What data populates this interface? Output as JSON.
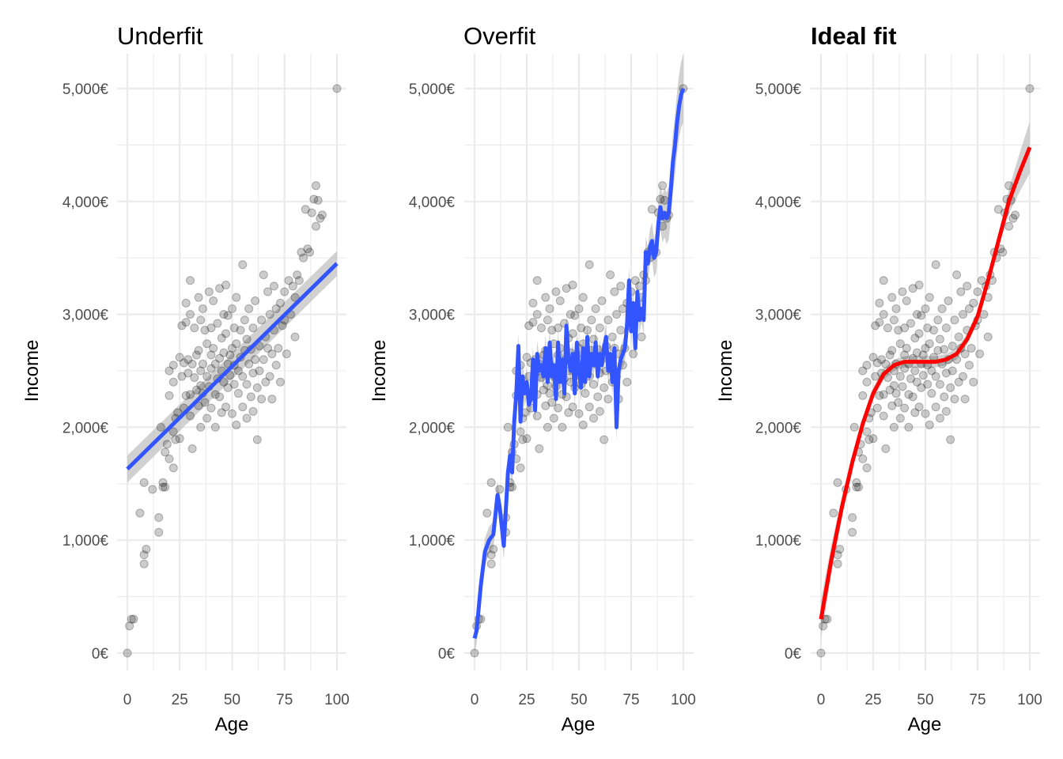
{
  "colors": {
    "grid": "#ebebeb",
    "points": "#000000",
    "confidence_band": "#bdbdbd",
    "fit_blue": "#3355ff",
    "fit_red": "#ff0000",
    "tick_text": "#4d4d4d"
  },
  "chart_data": [
    {
      "type": "scatter",
      "title": "Underfit",
      "title_color": "#000000",
      "title_bold": false,
      "xlabel": "Age",
      "ylabel": "Income",
      "xlim": [
        0,
        100
      ],
      "ylim": [
        0,
        5000
      ],
      "x_ticks": [
        "0",
        "25",
        "50",
        "75",
        "100"
      ],
      "y_ticks": [
        "0€",
        "1,000€",
        "2,000€",
        "3,000€",
        "4,000€",
        "5,000€"
      ],
      "grid": true,
      "fit": {
        "method": "linear",
        "color": "#3355ff",
        "band": true,
        "points": [
          [
            0,
            1630
          ],
          [
            100,
            3450
          ]
        ]
      }
    },
    {
      "type": "scatter",
      "title": "Overfit",
      "title_color": "#000000",
      "title_bold": false,
      "xlabel": "Age",
      "ylabel": "Income",
      "xlim": [
        0,
        100
      ],
      "ylim": [
        0,
        5000
      ],
      "x_ticks": [
        "0",
        "25",
        "50",
        "75",
        "100"
      ],
      "y_ticks": [
        "0€",
        "1,000€",
        "2,000€",
        "3,000€",
        "4,000€",
        "5,000€"
      ],
      "grid": true,
      "fit": {
        "method": "overfit",
        "color": "#3355ff",
        "band": true,
        "points": [
          [
            0,
            130
          ],
          [
            1,
            200
          ],
          [
            3,
            600
          ],
          [
            5,
            900
          ],
          [
            7,
            1000
          ],
          [
            9,
            1050
          ],
          [
            11,
            1400
          ],
          [
            12,
            1300
          ],
          [
            14,
            950
          ],
          [
            16,
            1600
          ],
          [
            17,
            1750
          ],
          [
            18,
            1600
          ],
          [
            19,
            2050
          ],
          [
            20,
            2300
          ],
          [
            21,
            2720
          ],
          [
            22,
            2050
          ],
          [
            23,
            2450
          ],
          [
            24,
            2300
          ],
          [
            25,
            2400
          ],
          [
            26,
            2200
          ],
          [
            27,
            2250
          ],
          [
            28,
            2600
          ],
          [
            29,
            2150
          ],
          [
            30,
            2650
          ],
          [
            31,
            2500
          ],
          [
            32,
            2550
          ],
          [
            33,
            2450
          ],
          [
            34,
            2700
          ],
          [
            35,
            2400
          ],
          [
            36,
            2750
          ],
          [
            37,
            2450
          ],
          [
            38,
            2550
          ],
          [
            39,
            2250
          ],
          [
            40,
            2750
          ],
          [
            41,
            2400
          ],
          [
            42,
            2600
          ],
          [
            43,
            2300
          ],
          [
            44,
            2900
          ],
          [
            45,
            2600
          ],
          [
            46,
            2500
          ],
          [
            47,
            2650
          ],
          [
            48,
            2300
          ],
          [
            49,
            2750
          ],
          [
            50,
            2500
          ],
          [
            51,
            2350
          ],
          [
            52,
            2700
          ],
          [
            53,
            2400
          ],
          [
            54,
            2800
          ],
          [
            55,
            2450
          ],
          [
            56,
            2650
          ],
          [
            57,
            2550
          ],
          [
            58,
            2750
          ],
          [
            59,
            2450
          ],
          [
            60,
            2650
          ],
          [
            61,
            2550
          ],
          [
            62,
            2700
          ],
          [
            63,
            2800
          ],
          [
            64,
            2500
          ],
          [
            65,
            2650
          ],
          [
            66,
            2400
          ],
          [
            67,
            2700
          ],
          [
            68,
            2000
          ],
          [
            69,
            2500
          ],
          [
            70,
            2600
          ],
          [
            71,
            2650
          ],
          [
            72,
            2700
          ],
          [
            73,
            2900
          ],
          [
            74,
            3300
          ],
          [
            75,
            2850
          ],
          [
            76,
            3100
          ],
          [
            77,
            2700
          ],
          [
            78,
            3200
          ],
          [
            79,
            2950
          ],
          [
            80,
            3050
          ],
          [
            81,
            2950
          ],
          [
            82,
            3550
          ],
          [
            83,
            3450
          ],
          [
            84,
            3600
          ],
          [
            85,
            3650
          ],
          [
            86,
            3500
          ],
          [
            87,
            3550
          ],
          [
            88,
            3800
          ],
          [
            89,
            3950
          ],
          [
            90,
            3850
          ],
          [
            91,
            3900
          ],
          [
            92,
            3850
          ],
          [
            93,
            3900
          ],
          [
            94,
            4100
          ],
          [
            95,
            4350
          ],
          [
            96,
            4500
          ],
          [
            97,
            4700
          ],
          [
            98,
            4850
          ],
          [
            99,
            4950
          ],
          [
            100,
            5000
          ]
        ]
      }
    },
    {
      "type": "scatter",
      "title": "Ideal fit",
      "title_color": "#ff0000",
      "title_bold": true,
      "xlabel": "Age",
      "ylabel": "Income",
      "xlim": [
        0,
        100
      ],
      "ylim": [
        0,
        5000
      ],
      "x_ticks": [
        "0",
        "25",
        "50",
        "75",
        "100"
      ],
      "y_ticks": [
        "0€",
        "1,000€",
        "2,000€",
        "3,000€",
        "4,000€",
        "5,000€"
      ],
      "grid": true,
      "fit": {
        "method": "smooth",
        "color": "#ff0000",
        "band": true,
        "points": [
          [
            0,
            300
          ],
          [
            5,
            830
          ],
          [
            10,
            1290
          ],
          [
            15,
            1690
          ],
          [
            20,
            2030
          ],
          [
            25,
            2300
          ],
          [
            30,
            2470
          ],
          [
            35,
            2550
          ],
          [
            40,
            2580
          ],
          [
            45,
            2580
          ],
          [
            50,
            2580
          ],
          [
            55,
            2580
          ],
          [
            60,
            2600
          ],
          [
            65,
            2650
          ],
          [
            70,
            2780
          ],
          [
            75,
            2980
          ],
          [
            80,
            3300
          ],
          [
            85,
            3650
          ],
          [
            90,
            4000
          ],
          [
            95,
            4250
          ],
          [
            100,
            4480
          ]
        ]
      }
    }
  ],
  "scatter_points": [
    [
      0,
      0
    ],
    [
      1,
      240
    ],
    [
      2,
      300
    ],
    [
      3,
      300
    ],
    [
      6,
      1240
    ],
    [
      8,
      1510
    ],
    [
      8,
      870
    ],
    [
      8,
      790
    ],
    [
      9,
      920
    ],
    [
      12,
      1450
    ],
    [
      15,
      1200
    ],
    [
      15,
      1070
    ],
    [
      16,
      2000
    ],
    [
      17,
      1510
    ],
    [
      17,
      1470
    ],
    [
      18,
      1780
    ],
    [
      18,
      1470
    ],
    [
      19,
      1850
    ],
    [
      20,
      2280
    ],
    [
      20,
      2500
    ],
    [
      20,
      1720
    ],
    [
      22,
      1640
    ],
    [
      22,
      1960
    ],
    [
      22,
      2400
    ],
    [
      22,
      2550
    ],
    [
      23,
      1890
    ],
    [
      23,
      2080
    ],
    [
      24,
      2130
    ],
    [
      25,
      2620
    ],
    [
      25,
      1900
    ],
    [
      26,
      2450
    ],
    [
      26,
      2900
    ],
    [
      27,
      2570
    ],
    [
      27,
      2170
    ],
    [
      28,
      2280
    ],
    [
      28,
      2930
    ],
    [
      28,
      3100
    ],
    [
      29,
      2480
    ],
    [
      29,
      2600
    ],
    [
      30,
      3300
    ],
    [
      30,
      3000
    ],
    [
      30,
      2290
    ],
    [
      30,
      2100
    ],
    [
      31,
      2560
    ],
    [
      31,
      1810
    ],
    [
      32,
      2440
    ],
    [
      32,
      2880
    ],
    [
      33,
      2330
    ],
    [
      33,
      2640
    ],
    [
      34,
      3150
    ],
    [
      34,
      2680
    ],
    [
      34,
      2190
    ],
    [
      35,
      2370
    ],
    [
      35,
      2000
    ],
    [
      35,
      2500
    ],
    [
      35,
      2950
    ],
    [
      36,
      2300
    ],
    [
      36,
      3050
    ],
    [
      36,
      2560
    ],
    [
      37,
      2860
    ],
    [
      37,
      2220
    ],
    [
      38,
      2080
    ],
    [
      38,
      2740
    ],
    [
      38,
      2450
    ],
    [
      39,
      3200
    ],
    [
      39,
      2360
    ],
    [
      40,
      2520
    ],
    [
      40,
      2880
    ],
    [
      40,
      2170
    ],
    [
      40,
      2640
    ],
    [
      41,
      3120
    ],
    [
      41,
      2700
    ],
    [
      42,
      2290
    ],
    [
      42,
      2000
    ],
    [
      42,
      2560
    ],
    [
      43,
      2920
    ],
    [
      43,
      2430
    ],
    [
      44,
      3230
    ],
    [
      44,
      2610
    ],
    [
      44,
      2270
    ],
    [
      45,
      2790
    ],
    [
      45,
      2500
    ],
    [
      45,
      2130
    ],
    [
      46,
      3000
    ],
    [
      46,
      2660
    ],
    [
      46,
      2400
    ],
    [
      47,
      2830
    ],
    [
      47,
      2180
    ],
    [
      47,
      3260
    ],
    [
      48,
      2560
    ],
    [
      48,
      2350
    ],
    [
      48,
      2990
    ],
    [
      49,
      2640
    ],
    [
      49,
      2460
    ],
    [
      50,
      3050
    ],
    [
      50,
      2700
    ],
    [
      50,
      2120
    ],
    [
      51,
      2550
    ],
    [
      51,
      2380
    ],
    [
      51,
      2880
    ],
    [
      52,
      2020
    ],
    [
      52,
      2740
    ],
    [
      52,
      3150
    ],
    [
      53,
      2500
    ],
    [
      53,
      2300
    ],
    [
      54,
      2860
    ],
    [
      54,
      2620
    ],
    [
      55,
      2450
    ],
    [
      55,
      3440
    ],
    [
      55,
      2180
    ],
    [
      56,
      2950
    ],
    [
      56,
      2680
    ],
    [
      57,
      2380
    ],
    [
      57,
      2080
    ],
    [
      57,
      2780
    ],
    [
      58,
      2560
    ],
    [
      58,
      3050
    ],
    [
      59,
      2270
    ],
    [
      59,
      2690
    ],
    [
      60,
      2480
    ],
    [
      60,
      2880
    ],
    [
      60,
      2140
    ],
    [
      61,
      2600
    ],
    [
      61,
      3120
    ],
    [
      62,
      2350
    ],
    [
      62,
      1890
    ],
    [
      63,
      2720
    ],
    [
      63,
      2500
    ],
    [
      64,
      2950
    ],
    [
      64,
      2250
    ],
    [
      65,
      2600
    ],
    [
      65,
      3350
    ],
    [
      66,
      2800
    ],
    [
      66,
      2400
    ],
    [
      67,
      3200
    ],
    [
      67,
      2700
    ],
    [
      68,
      2450
    ],
    [
      68,
      3000
    ],
    [
      69,
      2650
    ],
    [
      69,
      2250
    ],
    [
      70,
      3250
    ],
    [
      70,
      2860
    ],
    [
      71,
      2550
    ],
    [
      71,
      3050
    ],
    [
      72,
      2700
    ],
    [
      73,
      3100
    ],
    [
      73,
      2400
    ],
    [
      74,
      2900
    ],
    [
      75,
      3200
    ],
    [
      75,
      2950
    ],
    [
      76,
      2650
    ],
    [
      77,
      3300
    ],
    [
      78,
      3000
    ],
    [
      79,
      3250
    ],
    [
      80,
      3150
    ],
    [
      80,
      2800
    ],
    [
      81,
      3350
    ],
    [
      82,
      3300
    ],
    [
      83,
      3550
    ],
    [
      84,
      3500
    ],
    [
      85,
      3930
    ],
    [
      86,
      3580
    ],
    [
      87,
      3550
    ],
    [
      88,
      3900
    ],
    [
      89,
      4020
    ],
    [
      90,
      3780
    ],
    [
      90,
      4140
    ],
    [
      91,
      4010
    ],
    [
      92,
      3850
    ],
    [
      93,
      3880
    ],
    [
      100,
      5000
    ]
  ]
}
